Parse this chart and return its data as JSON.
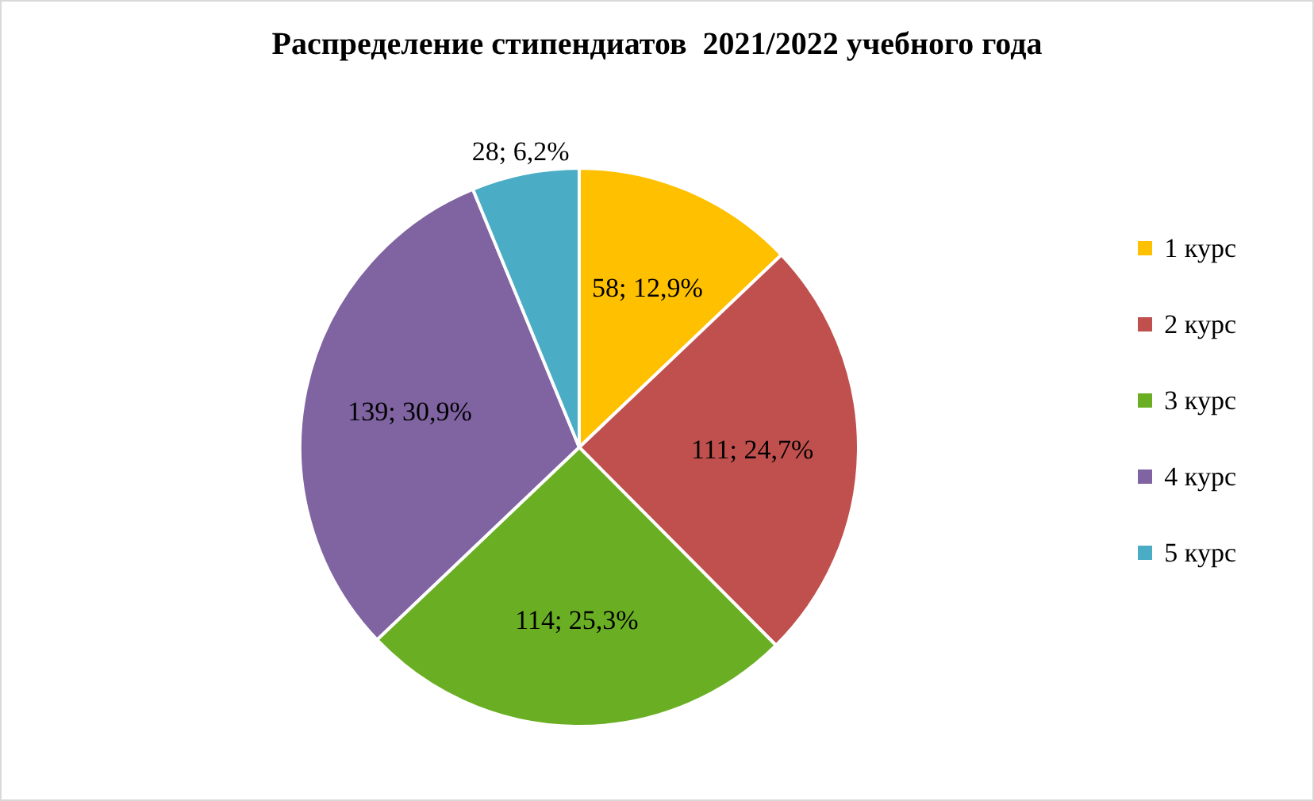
{
  "chart_data": {
    "type": "pie",
    "title": "Распределение стипендиатов  2021/2022 учебного года",
    "categories": [
      "1 курс",
      "2 курс",
      "3 курс",
      "4 курс",
      "5 курс"
    ],
    "values": [
      58,
      111,
      114,
      139,
      28
    ],
    "value_labels": [
      "58; 12,9%",
      "111; 24,7%",
      "114; 25,3%",
      "139; 30,9%",
      "28; 6,2%"
    ],
    "colors": [
      "#ffc000",
      "#c0504d",
      "#6aaf23",
      "#8064a2",
      "#4bacc6"
    ],
    "legend": "right"
  }
}
